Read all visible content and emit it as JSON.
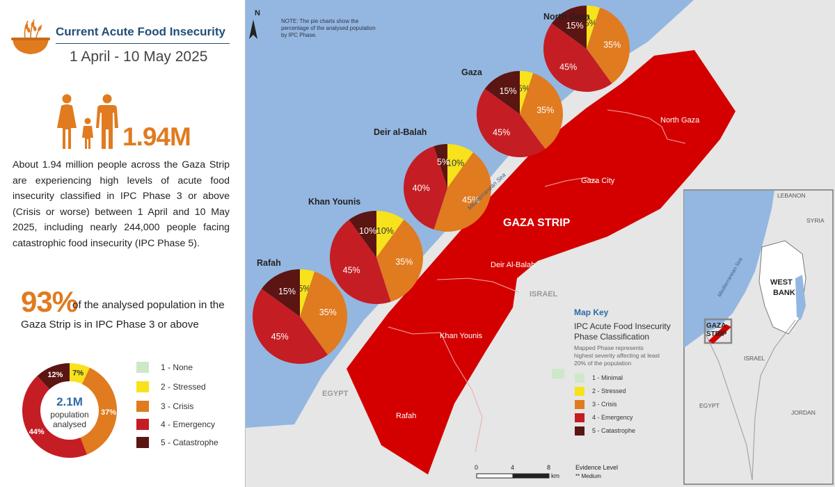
{
  "header": {
    "title": "Current Acute Food Insecurity",
    "date_range": "1 April - 10 May 2025",
    "icon": "wheat-bowl-icon"
  },
  "highlight": {
    "icon": "family-icon",
    "number": "1.94M",
    "paragraph": "About 1.94 million people across the Gaza Strip are experiencing high levels of acute food insecurity classified in IPC Phase 3 or above (Crisis or worse) between 1 April and 10 May 2025, including nearly 244,000 people facing catastrophic food insecurity (IPC Phase 5)."
  },
  "share": {
    "percent": "93%",
    "text_line1": "of the analysed population in the",
    "text_line2": "Gaza Strip is in IPC Phase 3 or above"
  },
  "donut": {
    "center_value": "2.1M",
    "center_line1": "population",
    "center_line2": "analysed",
    "slices": [
      {
        "phase": 2,
        "value": 7,
        "label": "7%"
      },
      {
        "phase": 3,
        "value": 37,
        "label": "37%"
      },
      {
        "phase": 4,
        "value": 44,
        "label": "44%"
      },
      {
        "phase": 5,
        "value": 12,
        "label": "12%"
      }
    ]
  },
  "phases": [
    {
      "id": 1,
      "label": "1 - None",
      "map_label": "1 - Minimal",
      "color": "#cde8c8"
    },
    {
      "id": 2,
      "label": "2 - Stressed",
      "map_label": "2 - Stressed",
      "color": "#f7e21c"
    },
    {
      "id": 3,
      "label": "3 - Crisis",
      "map_label": "3 - Crisis",
      "color": "#e07b1f"
    },
    {
      "id": 4,
      "label": "4 - Emergency",
      "map_label": "4 - Emergency",
      "color": "#c51d24"
    },
    {
      "id": 5,
      "label": "5 - Catastrophe",
      "map_label": "5 - Catastrophe",
      "color": "#5b1512"
    }
  ],
  "map": {
    "note": "NOTE: The pie charts show the percentage of the analysed population by IPC Phase.",
    "north_symbol": "N",
    "sea_label": "Mediterranean Sea",
    "strip_label": "GAZA STRIP",
    "country_labels": {
      "israel": "ISRAEL",
      "egypt": "EGYPT"
    },
    "governorate_labels": {
      "north_gaza": "North Gaza",
      "gaza_city": "Gaza City",
      "deir_al_balah": "Deir Al-Balah",
      "khan_younis": "Khan Younis",
      "rafah": "Rafah"
    },
    "scale": {
      "ticks": [
        "0",
        "4",
        "8"
      ],
      "unit": "km"
    },
    "evidence": {
      "title": "Evidence Level",
      "value": "** Medium"
    },
    "key": {
      "title": "Map Key",
      "subtitle_line1": "IPC Acute Food Insecurity",
      "subtitle_line2": "Phase Classification",
      "note_line1": "Mapped Phase represents",
      "note_line2": "highest severity affecting at least",
      "note_line3": "20% of the population"
    },
    "inset": {
      "lebanon": "LEBANON",
      "syria": "SYRIA",
      "west_bank_line1": "WEST",
      "west_bank_line2": "BANK",
      "gaza_line1": "GAZA",
      "gaza_line2": "STRIP",
      "israel": "ISRAEL",
      "egypt": "EGYPT",
      "jordan": "JORDAN",
      "sea": "Mediterranean Sea"
    },
    "pies": [
      {
        "name": "North Gaza",
        "phases": [
          {
            "phase": 2,
            "value": 5,
            "label": "5%"
          },
          {
            "phase": 3,
            "value": 35,
            "label": "35%"
          },
          {
            "phase": 4,
            "value": 45,
            "label": "45%"
          },
          {
            "phase": 5,
            "value": 15,
            "label": "15%"
          }
        ]
      },
      {
        "name": "Gaza",
        "phases": [
          {
            "phase": 2,
            "value": 5,
            "label": "5%"
          },
          {
            "phase": 3,
            "value": 35,
            "label": "35%"
          },
          {
            "phase": 4,
            "value": 45,
            "label": "45%"
          },
          {
            "phase": 5,
            "value": 15,
            "label": "15%"
          }
        ]
      },
      {
        "name": "Deir al-Balah",
        "phases": [
          {
            "phase": 2,
            "value": 10,
            "label": "10%"
          },
          {
            "phase": 3,
            "value": 45,
            "label": "45%"
          },
          {
            "phase": 4,
            "value": 40,
            "label": "40%"
          },
          {
            "phase": 5,
            "value": 5,
            "label": "5%"
          }
        ]
      },
      {
        "name": "Khan Younis",
        "phases": [
          {
            "phase": 2,
            "value": 10,
            "label": "10%"
          },
          {
            "phase": 3,
            "value": 35,
            "label": "35%"
          },
          {
            "phase": 4,
            "value": 45,
            "label": "45%"
          },
          {
            "phase": 5,
            "value": 10,
            "label": "10%"
          }
        ]
      },
      {
        "name": "Rafah",
        "phases": [
          {
            "phase": 2,
            "value": 5,
            "label": "5%"
          },
          {
            "phase": 3,
            "value": 35,
            "label": "35%"
          },
          {
            "phase": 4,
            "value": 45,
            "label": "45%"
          },
          {
            "phase": 5,
            "value": 15,
            "label": "15%"
          }
        ]
      }
    ]
  }
}
